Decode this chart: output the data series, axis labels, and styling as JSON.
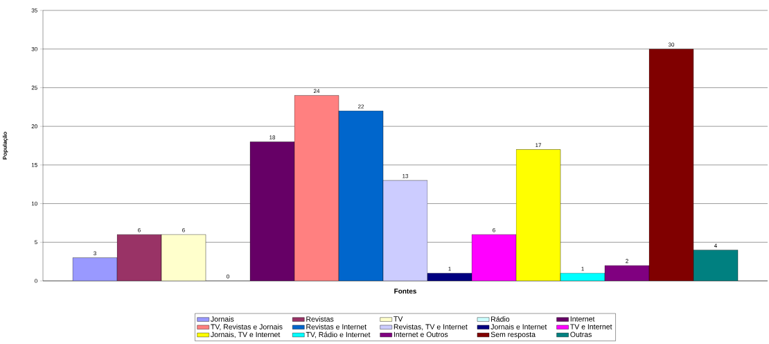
{
  "chart_data": {
    "type": "bar",
    "xlabel": "Fontes",
    "ylabel": "População",
    "categories": [
      null
    ],
    "series": [
      {
        "name": "Jornais",
        "color": "#9999ff",
        "values": [
          3
        ],
        "value_labels": [
          "3"
        ]
      },
      {
        "name": "Revistas",
        "color": "#993366",
        "values": [
          6
        ],
        "value_labels": [
          "6"
        ]
      },
      {
        "name": "TV",
        "color": "#ffffcc",
        "values": [
          6
        ],
        "value_labels": [
          "6"
        ]
      },
      {
        "name": "Rádio",
        "color": "#ccffff",
        "values": [
          0
        ],
        "value_labels": [
          null
        ]
      },
      {
        "name": "Internet",
        "color": "#660066",
        "values": [
          18
        ],
        "value_labels": [
          "18"
        ]
      },
      {
        "name": "TV, Revistas e Jornais",
        "color": "#ff8080",
        "values": [
          24
        ],
        "value_labels": [
          "24"
        ]
      },
      {
        "name": "Revistas e Internet",
        "color": "#0066cc",
        "values": [
          22
        ],
        "value_labels": [
          "22"
        ]
      },
      {
        "name": "Revistas, TV e Internet",
        "color": "#ccccff",
        "values": [
          13
        ],
        "value_labels": [
          "13"
        ]
      },
      {
        "name": "Jornais e Internet",
        "color": "#000080",
        "values": [
          1
        ],
        "value_labels": [
          "1"
        ]
      },
      {
        "name": "TV e Internet",
        "color": "#ff00ff",
        "values": [
          6
        ],
        "value_labels": [
          "6"
        ]
      },
      {
        "name": "Jornais, TV e Internet",
        "color": "#ffff00",
        "values": [
          17
        ],
        "value_labels": [
          "17"
        ]
      },
      {
        "name": "TV, Rádio e Internet",
        "color": "#00ffff",
        "values": [
          1
        ],
        "value_labels": [
          "1"
        ]
      },
      {
        "name": "Internet e Outros",
        "color": "#800080",
        "values": [
          2
        ],
        "value_labels": [
          "2"
        ]
      },
      {
        "name": "Sem resposta",
        "color": "#800000",
        "values": [
          30
        ],
        "value_labels": [
          "30"
        ]
      },
      {
        "name": "Outras",
        "color": "#008080",
        "values": [
          4
        ],
        "value_labels": [
          "4"
        ]
      }
    ],
    "annotations": [
      "0"
    ],
    "ylim": [
      0,
      35
    ],
    "yticks": [
      0,
      5,
      10,
      15,
      20,
      25,
      30,
      35
    ],
    "grid": "y",
    "legend": "bottom"
  }
}
